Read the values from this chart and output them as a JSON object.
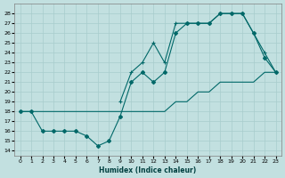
{
  "xlabel": "Humidex (Indice chaleur)",
  "bg_color": "#c2e0e0",
  "grid_color": "#a8cccc",
  "line_color": "#006868",
  "xlim": [
    -0.5,
    23.5
  ],
  "ylim": [
    13.5,
    29.0
  ],
  "xticks": [
    0,
    1,
    2,
    3,
    4,
    5,
    6,
    7,
    8,
    9,
    10,
    11,
    12,
    13,
    14,
    15,
    16,
    17,
    18,
    19,
    20,
    21,
    22,
    23
  ],
  "yticks": [
    14,
    15,
    16,
    17,
    18,
    19,
    20,
    21,
    22,
    23,
    24,
    25,
    26,
    27,
    28
  ],
  "line1_x": [
    0,
    1,
    2,
    3,
    4,
    5,
    6,
    7,
    8,
    9,
    10,
    11,
    12,
    13,
    14,
    15,
    16,
    17,
    18,
    19,
    20,
    21,
    22,
    23
  ],
  "line1_y": [
    18,
    18,
    18,
    18,
    18,
    18,
    18,
    18,
    18,
    18,
    18,
    18,
    18,
    18,
    19,
    19,
    20,
    20,
    21,
    21,
    21,
    21,
    22,
    22
  ],
  "line2_x": [
    0,
    1,
    2,
    3,
    4,
    5,
    6,
    7,
    8,
    9,
    10,
    11,
    12,
    13,
    14,
    15,
    16,
    17,
    18,
    19,
    20,
    21,
    22,
    23
  ],
  "line2_y": [
    18,
    18,
    16,
    16,
    16,
    16,
    15.5,
    14.5,
    15,
    17.5,
    21,
    22,
    21,
    22,
    26,
    27,
    27,
    27,
    28,
    28,
    28,
    26,
    23.5,
    22
  ],
  "line3_x": [
    9,
    10,
    11,
    12,
    13,
    14,
    15,
    16,
    17,
    18,
    19,
    20,
    21,
    22,
    23
  ],
  "line3_y": [
    19,
    22,
    23,
    25,
    23,
    27,
    27,
    27,
    27,
    28,
    28,
    28,
    26,
    24,
    22
  ]
}
